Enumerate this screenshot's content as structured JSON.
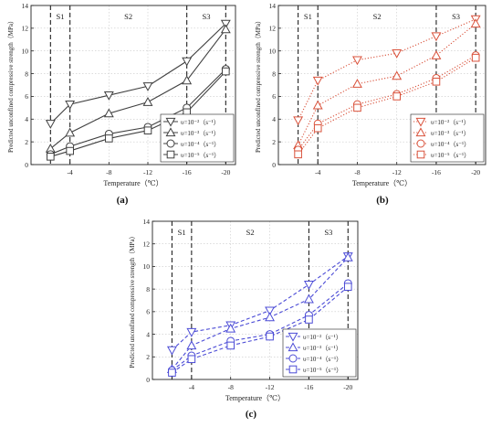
{
  "chart_data": [
    {
      "panel_label": "(a)",
      "type": "line",
      "color": "#404040",
      "xlabel": "Temperature（℃）",
      "ylabel": "Predicted unconfined compressive strength（MPa）",
      "x": [
        -2,
        -4,
        -8,
        -12,
        -16,
        -20
      ],
      "xlim": [
        0,
        -21
      ],
      "ylim": [
        0,
        14
      ],
      "xticks": [
        "-4",
        "-8",
        "-12",
        "-16",
        "-20"
      ],
      "yticks": [
        "0",
        "2",
        "4",
        "6",
        "8",
        "10",
        "12",
        "14"
      ],
      "grid": true,
      "legend_position": "lower-right",
      "stage_boundaries": [
        -2,
        -4,
        -16,
        -20
      ],
      "stage_labels": [
        {
          "text": "S1",
          "x": -3
        },
        {
          "text": "S2",
          "x": -10
        },
        {
          "text": "S3",
          "x": -18
        }
      ],
      "series": [
        {
          "name": "υ=10⁻²（s⁻¹）",
          "marker": "triangle-down",
          "line": "solid",
          "values": [
            3.6,
            5.3,
            6.1,
            6.9,
            9.1,
            12.4
          ]
        },
        {
          "name": "υ=10⁻³（s⁻¹）",
          "marker": "triangle-up",
          "line": "solid",
          "values": [
            1.4,
            2.8,
            4.5,
            5.5,
            7.4,
            11.9
          ]
        },
        {
          "name": "υ=10⁻⁴（s⁻¹）",
          "marker": "circle",
          "line": "solid",
          "values": [
            0.9,
            1.6,
            2.7,
            3.3,
            5.0,
            8.4
          ]
        },
        {
          "name": "υ=10⁻⁵（s⁻¹）",
          "marker": "square",
          "line": "solid",
          "values": [
            0.7,
            1.2,
            2.3,
            3.0,
            4.6,
            8.2
          ]
        }
      ]
    },
    {
      "panel_label": "(b)",
      "type": "line",
      "color": "#d9513a",
      "xlabel": "Temperature（℃）",
      "ylabel": "Predicted unconfined compressive strength（MPa）",
      "x": [
        -2,
        -4,
        -8,
        -12,
        -16,
        -20
      ],
      "xlim": [
        0,
        -21
      ],
      "ylim": [
        0,
        14
      ],
      "xticks": [
        "-4",
        "-8",
        "-12",
        "-16",
        "-20"
      ],
      "yticks": [
        "0",
        "2",
        "4",
        "6",
        "8",
        "10",
        "12",
        "14"
      ],
      "grid": true,
      "legend_position": "lower-right",
      "stage_boundaries": [
        -2,
        -4,
        -16,
        -20
      ],
      "stage_labels": [
        {
          "text": "S1",
          "x": -3
        },
        {
          "text": "S2",
          "x": -10
        },
        {
          "text": "S3",
          "x": -18
        }
      ],
      "series": [
        {
          "name": "υ=10⁻²（s⁻¹）",
          "marker": "triangle-down",
          "line": "dotted",
          "values": [
            3.9,
            7.4,
            9.2,
            9.8,
            11.3,
            12.8
          ]
        },
        {
          "name": "υ=10⁻³（s⁻¹）",
          "marker": "triangle-up",
          "line": "dotted",
          "values": [
            1.7,
            5.2,
            7.1,
            7.8,
            9.6,
            12.4
          ]
        },
        {
          "name": "υ=10⁻⁴（s⁻¹）",
          "marker": "circle",
          "line": "dotted",
          "values": [
            1.3,
            3.6,
            5.3,
            6.2,
            7.6,
            9.6
          ]
        },
        {
          "name": "υ=10⁻⁵（s⁻¹）",
          "marker": "square",
          "line": "dotted",
          "values": [
            0.9,
            3.2,
            5.0,
            6.0,
            7.3,
            9.4
          ]
        }
      ]
    },
    {
      "panel_label": "(c)",
      "type": "line",
      "color": "#4b4bd6",
      "xlabel": "Temperature（℃）",
      "ylabel": "Predicted unconfined compressive strength（MPa）",
      "x": [
        -2,
        -4,
        -8,
        -12,
        -16,
        -20
      ],
      "xlim": [
        0,
        -21
      ],
      "ylim": [
        0,
        14
      ],
      "xticks": [
        "-4",
        "-8",
        "-12",
        "-16",
        "-20"
      ],
      "yticks": [
        "0",
        "2",
        "4",
        "6",
        "8",
        "10",
        "12",
        "14"
      ],
      "grid": true,
      "legend_position": "lower-right",
      "stage_boundaries": [
        -2,
        -4,
        -16,
        -20
      ],
      "stage_labels": [
        {
          "text": "S1",
          "x": -3
        },
        {
          "text": "S2",
          "x": -10
        },
        {
          "text": "S3",
          "x": -18
        }
      ],
      "series": [
        {
          "name": "υ=10⁻²（s⁻¹）",
          "marker": "triangle-down",
          "line": "dashed",
          "values": [
            2.6,
            4.2,
            4.8,
            6.1,
            8.4,
            10.9
          ]
        },
        {
          "name": "υ=10⁻³（s⁻¹）",
          "marker": "triangle-up",
          "line": "dashed",
          "values": [
            0.9,
            3.0,
            4.5,
            5.5,
            7.1,
            10.8
          ]
        },
        {
          "name": "υ=10⁻⁴（s⁻¹）",
          "marker": "circle",
          "line": "dashed",
          "values": [
            0.8,
            2.1,
            3.4,
            4.0,
            5.7,
            8.5
          ]
        },
        {
          "name": "υ=10⁻⁵（s⁻¹）",
          "marker": "square",
          "line": "dashed",
          "values": [
            0.6,
            1.8,
            3.0,
            3.8,
            5.3,
            8.2
          ]
        }
      ]
    }
  ]
}
